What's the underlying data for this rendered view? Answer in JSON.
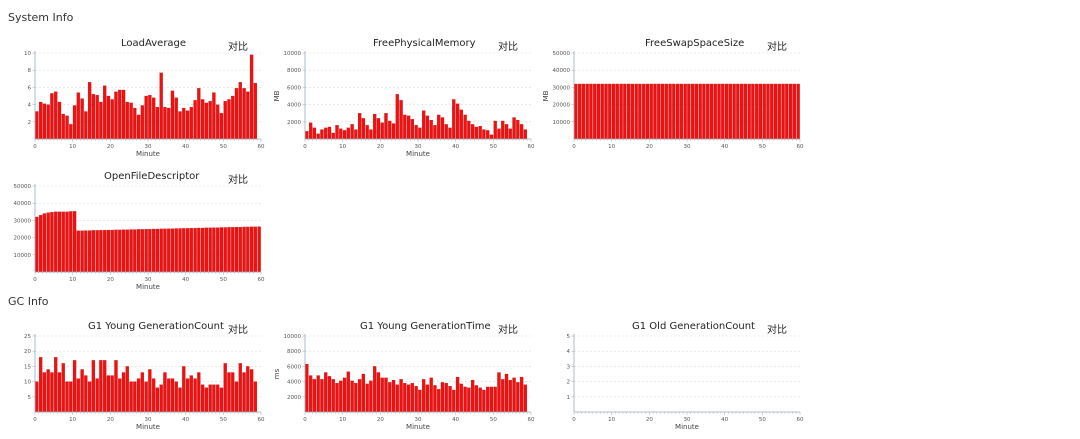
{
  "sections": {
    "system": {
      "title": "System Info"
    },
    "gc": {
      "title": "GC Info"
    }
  },
  "compare_label": "对比",
  "colors": {
    "bar": "#ee1111",
    "bar_edge": "#b50000",
    "grid": "#dcdcdc",
    "axis": "#9ab",
    "text": "#333333"
  },
  "chart_data": [
    {
      "id": "load-average",
      "type": "bar",
      "title": "LoadAverage",
      "xlabel": "Minute",
      "ylabel": "",
      "xlim": [
        0,
        60
      ],
      "ylim": [
        0,
        10
      ],
      "xticks": [
        0,
        10,
        20,
        30,
        40,
        50,
        60
      ],
      "yticks": [
        2,
        4,
        6,
        8,
        10
      ],
      "grid": true,
      "values": [
        3.2,
        4.3,
        4.1,
        4.0,
        5.3,
        5.5,
        4.3,
        2.9,
        2.7,
        1.7,
        3.9,
        5.4,
        4.7,
        3.2,
        6.6,
        5.2,
        5.1,
        4.3,
        6.2,
        5.0,
        4.6,
        5.5,
        5.7,
        5.7,
        4.3,
        4.2,
        3.6,
        2.8,
        3.9,
        5.0,
        5.1,
        4.8,
        3.7,
        7.7,
        3.7,
        3.6,
        5.6,
        4.8,
        3.2,
        3.6,
        3.3,
        3.7,
        4.5,
        5.9,
        4.6,
        4.2,
        4.4,
        5.4,
        4.0,
        3.0,
        4.4,
        4.6,
        5.0,
        5.9,
        6.6,
        5.9,
        5.5,
        9.8,
        6.5
      ]
    },
    {
      "id": "free-physical-memory",
      "type": "bar",
      "title": "FreePhysicalMemory",
      "xlabel": "Minute",
      "ylabel": "MB",
      "xlim": [
        0,
        60
      ],
      "ylim": [
        0,
        10000
      ],
      "xticks": [
        0,
        10,
        20,
        30,
        40,
        50,
        60
      ],
      "yticks": [
        2000,
        4000,
        6000,
        8000,
        10000
      ],
      "grid": true,
      "values": [
        900,
        1900,
        1300,
        600,
        1100,
        1300,
        1400,
        700,
        1600,
        1200,
        1000,
        1300,
        1700,
        1100,
        3000,
        2400,
        1600,
        1100,
        2900,
        2400,
        1900,
        3000,
        2100,
        1800,
        5200,
        4500,
        2800,
        2700,
        2300,
        1600,
        1300,
        3300,
        2700,
        2200,
        1600,
        2800,
        2500,
        1700,
        1300,
        4600,
        4100,
        3400,
        2800,
        2100,
        1700,
        1400,
        1500,
        1100,
        1000,
        500,
        2100,
        1200,
        2100,
        1700,
        1200,
        2500,
        2200,
        1700,
        1100
      ]
    },
    {
      "id": "free-swap-space-size",
      "type": "bar",
      "title": "FreeSwapSpaceSize",
      "xlabel": "",
      "ylabel": "MB",
      "xlim": [
        0,
        60
      ],
      "ylim": [
        0,
        50000
      ],
      "xticks": [
        0,
        10,
        20,
        30,
        40,
        50,
        60
      ],
      "yticks": [
        10000,
        20000,
        30000,
        40000,
        50000
      ],
      "grid": true,
      "values": [
        32000,
        32000,
        32000,
        32000,
        32000,
        32000,
        32000,
        32000,
        32000,
        32000,
        32000,
        32000,
        32000,
        32000,
        32000,
        32000,
        32000,
        32000,
        32000,
        32000,
        32000,
        32000,
        32000,
        32000,
        32000,
        32000,
        32000,
        32000,
        32000,
        32000,
        32000,
        32000,
        32000,
        32000,
        32000,
        32000,
        32000,
        32000,
        32000,
        32000,
        32000,
        32000,
        32000,
        32000,
        32000,
        32000,
        32000,
        32000,
        32000,
        32000,
        32000,
        32000,
        32000,
        32000,
        32000,
        32000,
        32000,
        32000,
        32000,
        32000
      ]
    },
    {
      "id": "open-file-descriptor",
      "type": "bar",
      "title": "OpenFileDescriptor",
      "xlabel": "Minute",
      "ylabel": "",
      "xlim": [
        0,
        60
      ],
      "ylim": [
        0,
        50000
      ],
      "xticks": [
        0,
        10,
        20,
        30,
        40,
        50,
        60
      ],
      "yticks": [
        10000,
        20000,
        30000,
        40000,
        50000
      ],
      "grid": true,
      "values": [
        32000,
        33000,
        34000,
        34500,
        34800,
        35000,
        35000,
        35000,
        35000,
        35200,
        35300,
        24000,
        24000,
        24100,
        24100,
        24200,
        24200,
        24300,
        24300,
        24400,
        24400,
        24500,
        24500,
        24600,
        24600,
        24700,
        24700,
        24800,
        24800,
        24900,
        24900,
        25000,
        25000,
        25100,
        25100,
        25200,
        25200,
        25300,
        25300,
        25400,
        25400,
        25500,
        25500,
        25600,
        25600,
        25700,
        25700,
        25800,
        25800,
        25900,
        25900,
        26000,
        26000,
        26100,
        26100,
        26200,
        26200,
        26300,
        26300,
        26400
      ]
    },
    {
      "id": "g1-young-generation-count",
      "type": "bar",
      "title": "G1 Young GenerationCount",
      "xlabel": "Minute",
      "ylabel": "",
      "xlim": [
        0,
        60
      ],
      "ylim": [
        0,
        25
      ],
      "xticks": [
        0,
        10,
        20,
        30,
        40,
        50,
        60
      ],
      "yticks": [
        5,
        10,
        15,
        20,
        25
      ],
      "grid": true,
      "values": [
        10,
        18,
        13,
        14,
        13,
        18,
        13,
        16,
        10,
        10,
        17,
        11,
        14,
        12,
        10,
        17,
        11,
        17,
        17,
        12,
        12,
        17,
        11,
        13,
        15,
        10,
        10,
        11,
        13,
        10,
        14,
        11,
        8,
        9,
        13,
        11,
        11,
        10,
        8,
        15,
        11,
        12,
        11,
        13,
        9,
        8,
        9,
        9,
        9,
        8,
        16,
        13,
        13,
        10,
        16,
        13,
        15,
        14,
        10
      ]
    },
    {
      "id": "g1-young-generation-time",
      "type": "bar",
      "title": "G1 Young GenerationTime",
      "xlabel": "Minute",
      "ylabel": "ms",
      "xlim": [
        0,
        60
      ],
      "ylim": [
        0,
        10000
      ],
      "xticks": [
        0,
        10,
        20,
        30,
        40,
        50,
        60
      ],
      "yticks": [
        2000,
        4000,
        6000,
        8000,
        10000
      ],
      "grid": true,
      "values": [
        6300,
        4800,
        4300,
        4800,
        4300,
        5200,
        4700,
        4300,
        3800,
        4100,
        4500,
        5300,
        4100,
        3800,
        4300,
        5000,
        3700,
        4100,
        6000,
        5200,
        4500,
        4500,
        3900,
        4200,
        3600,
        4300,
        3800,
        3600,
        3800,
        3400,
        2900,
        4300,
        3600,
        4500,
        3500,
        3000,
        3900,
        3800,
        3400,
        2900,
        4600,
        3700,
        3300,
        3200,
        4200,
        3500,
        3200,
        2900,
        3300,
        3300,
        3300,
        5200,
        4300,
        5000,
        4200,
        4500,
        3900,
        4600,
        3600
      ]
    },
    {
      "id": "g1-old-generation-count",
      "type": "bar",
      "title": "G1 Old GenerationCount",
      "xlabel": "Minute",
      "ylabel": "",
      "xlim": [
        0,
        60
      ],
      "ylim": [
        0,
        5
      ],
      "xticks": [
        0,
        10,
        20,
        30,
        40,
        50,
        60
      ],
      "yticks": [
        1,
        2,
        3,
        4,
        5
      ],
      "grid": true,
      "values": []
    }
  ]
}
